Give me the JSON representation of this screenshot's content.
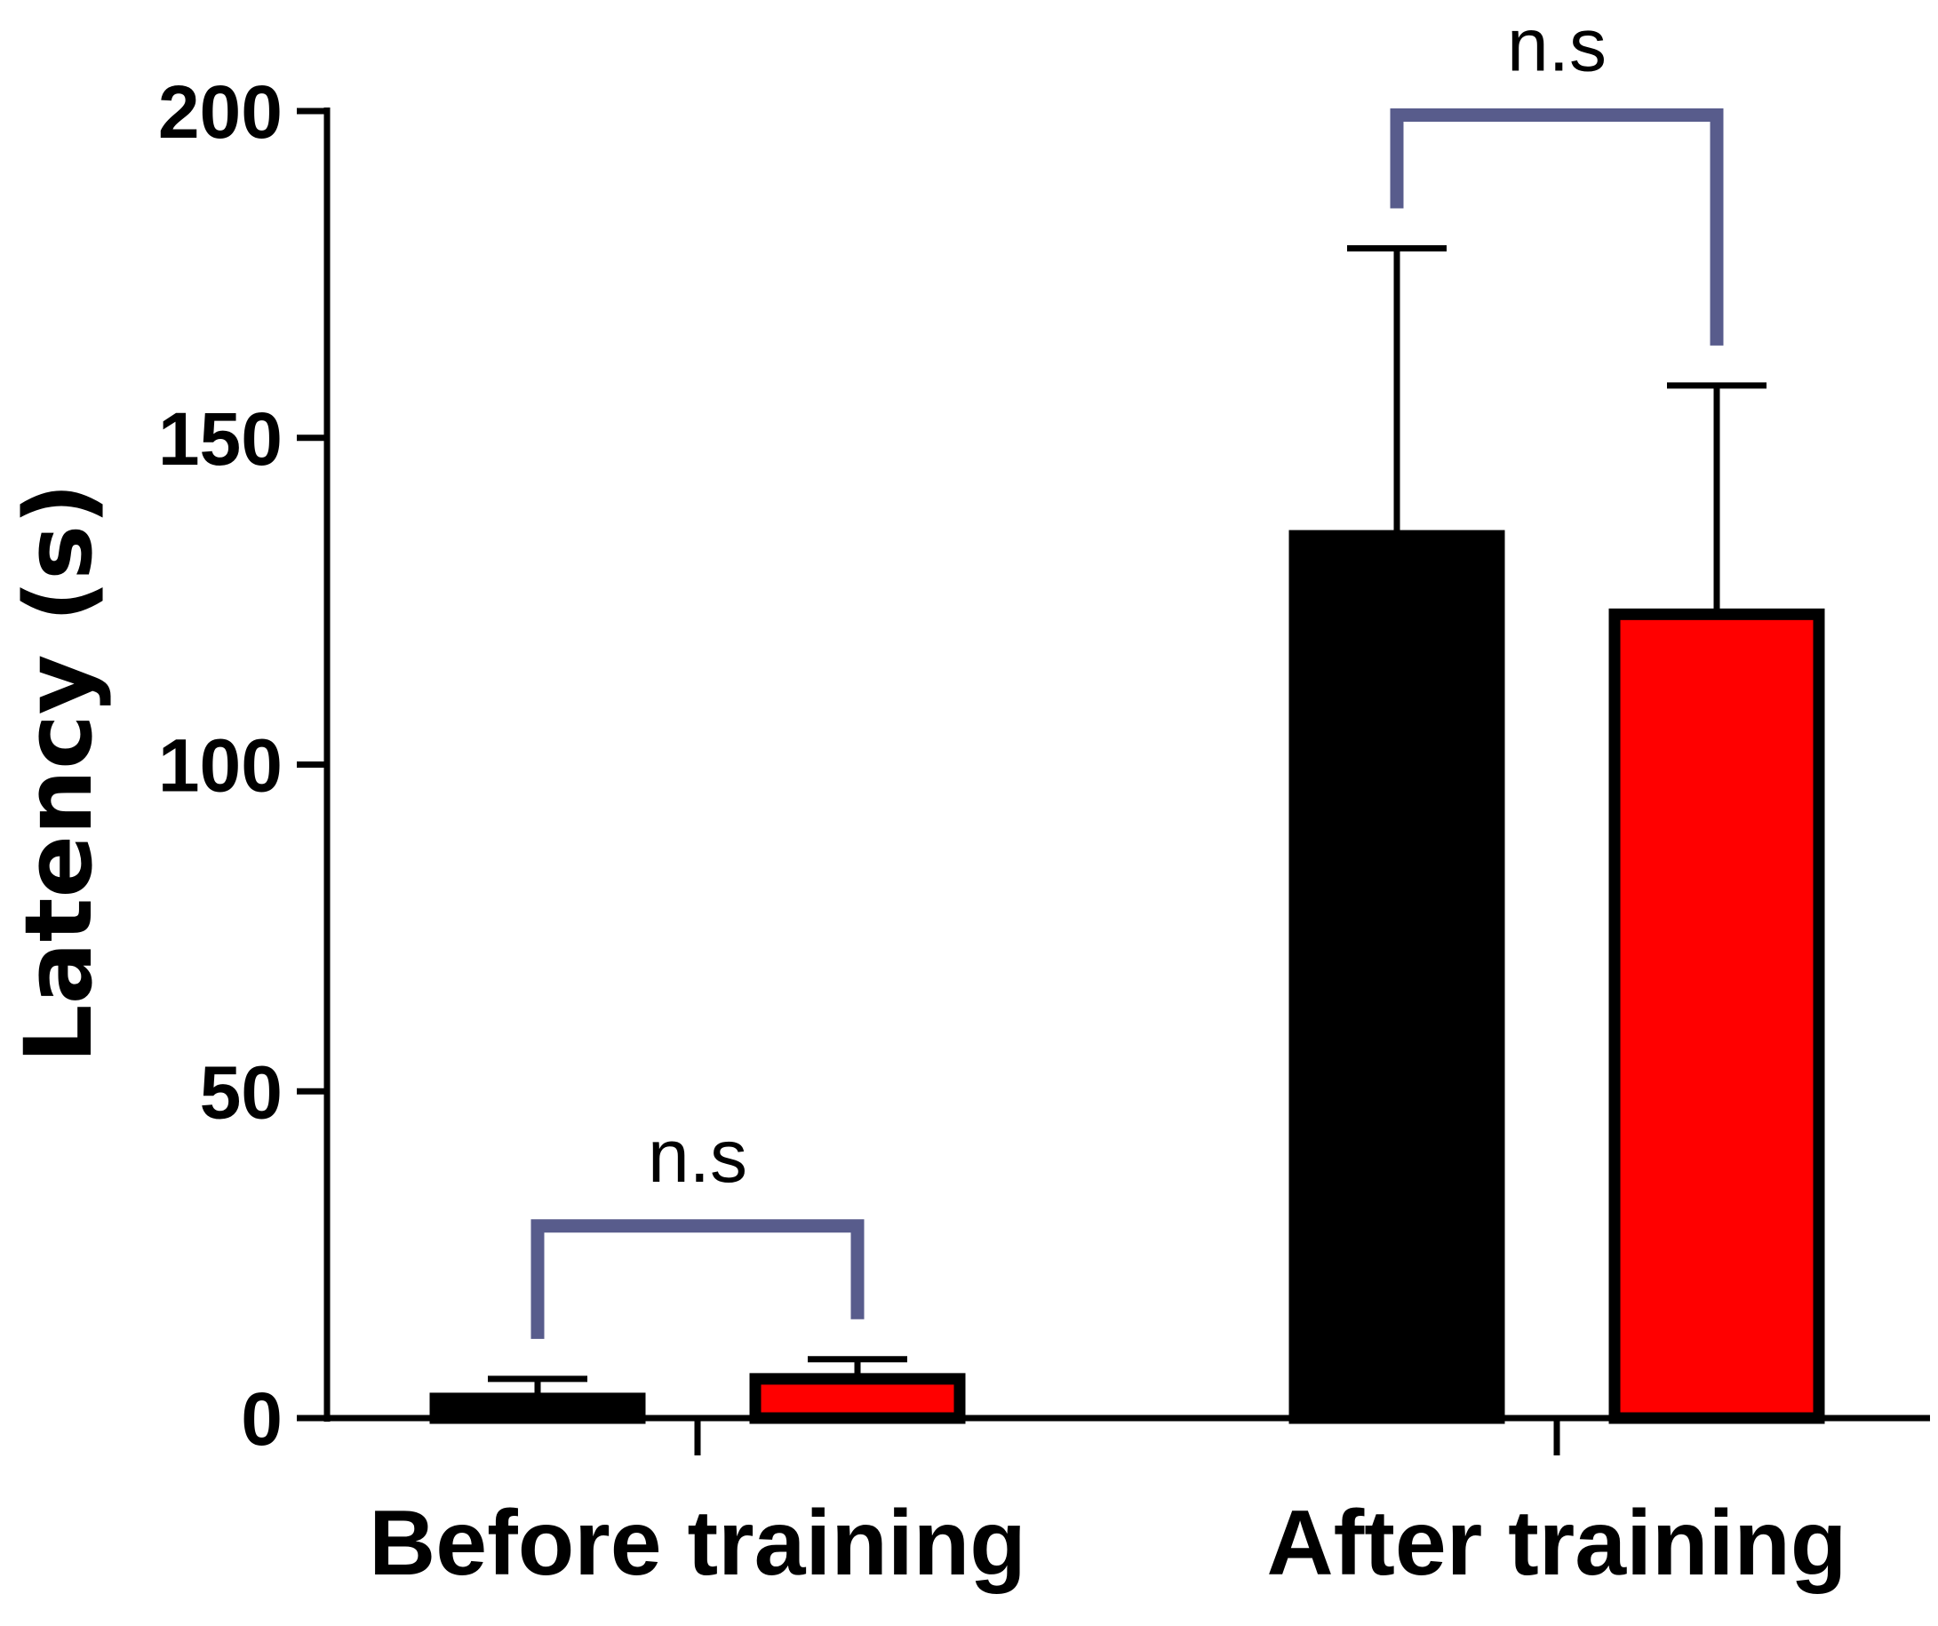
{
  "chart_data": {
    "type": "bar",
    "categories": [
      "Before training",
      "After training"
    ],
    "series": [
      {
        "color": "#000000",
        "values": [
          3,
          135
        ],
        "errors": [
          6,
          179
        ]
      },
      {
        "color": "#ff0000",
        "values": [
          6,
          123
        ],
        "errors": [
          9,
          158
        ]
      }
    ],
    "xlabel": "",
    "ylabel": "Latency (s)",
    "ylim": [
      0,
      200
    ],
    "yticks": [
      0,
      50,
      100,
      150,
      200
    ],
    "grid": false,
    "legend": "none",
    "significance": [
      {
        "category": "Before training",
        "label": "n.s"
      },
      {
        "category": "After training",
        "label": "n.s"
      }
    ],
    "colors": {
      "axis": "#000000",
      "bracket": "#585c8c"
    }
  }
}
